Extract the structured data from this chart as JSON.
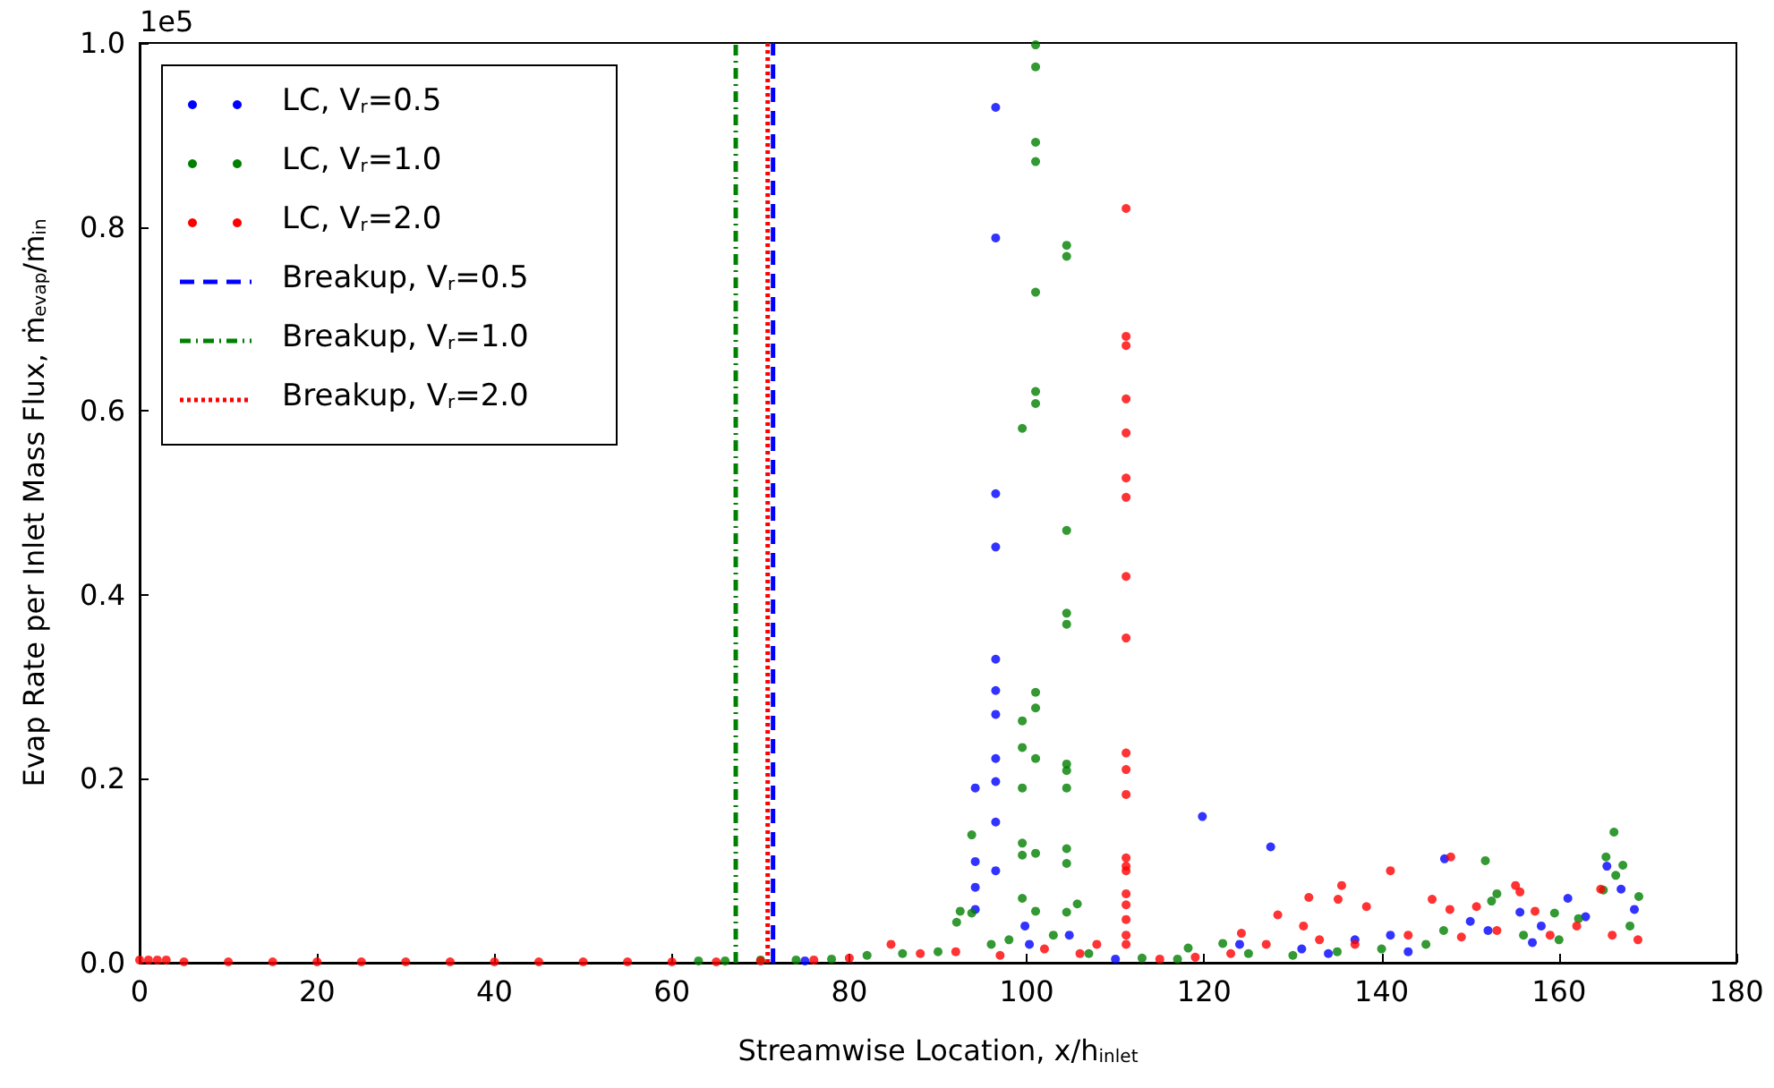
{
  "chart_data": {
    "type": "scatter",
    "xlabel": "Streamwise Location, x/h$_{inlet}$",
    "ylabel": "Evap Rate per Inlet Mass Flux, ṁ$_{evap}$/ṁ$_{in}$",
    "annotations": [
      "1e5"
    ],
    "xlim": [
      0,
      180
    ],
    "xticks": [
      0,
      20,
      40,
      60,
      80,
      100,
      120,
      140,
      160,
      180
    ],
    "ylim": [
      0,
      1
    ],
    "yticks": [
      {
        "value": 0,
        "label": "0.0"
      },
      0.2,
      0.4,
      0.6,
      0.8,
      {
        "value": 1,
        "label": "1.0"
      }
    ],
    "grid": false,
    "legend": "top left",
    "marker": "circle",
    "series": [
      {
        "name": "LC, V$_{r}$=0.5",
        "color": "#0000ff",
        "x": [
          96.5,
          96.5,
          96.5,
          96.5,
          96.5,
          96.5,
          96.5,
          96.5,
          96.5,
          96.5,
          96.5,
          94.2,
          94.2,
          94.2,
          94.2,
          99.8,
          100.3,
          104.8,
          119.8,
          127.5,
          147.1,
          165.4,
          167,
          161,
          150,
          155.6,
          168.5,
          124,
          131,
          137,
          141,
          152,
          158,
          163,
          75,
          110,
          134,
          143,
          157
        ],
        "values": [
          0.93,
          0.788,
          0.51,
          0.452,
          0.33,
          0.296,
          0.27,
          0.222,
          0.197,
          0.153,
          0.1,
          0.19,
          0.11,
          0.082,
          0.058,
          0.04,
          0.02,
          0.03,
          0.159,
          0.126,
          0.113,
          0.105,
          0.08,
          0.07,
          0.045,
          0.055,
          0.058,
          0.02,
          0.015,
          0.025,
          0.03,
          0.035,
          0.04,
          0.05,
          0.002,
          0.004,
          0.01,
          0.012,
          0.022
        ]
      },
      {
        "name": "LC, V$_{r}$=1.0",
        "color": "#008000",
        "x": [
          101,
          101,
          101,
          101,
          101,
          101,
          101,
          101,
          101,
          101,
          101,
          101,
          99.5,
          99.5,
          99.5,
          99.5,
          99.5,
          99.5,
          99.5,
          104.5,
          104.5,
          104.5,
          104.5,
          104.5,
          104.5,
          104.5,
          104.5,
          104.5,
          104.5,
          104.5,
          105.7,
          93.8,
          93.8,
          92.1,
          92.5,
          166.2,
          151.7,
          165.3,
          167.2,
          166.4,
          153,
          169,
          165,
          152.4,
          159.5,
          122.1,
          118.2,
          147,
          162.2,
          63,
          66,
          70,
          74,
          78,
          82,
          86,
          90,
          96,
          98,
          103,
          107,
          113,
          117,
          125,
          130,
          135,
          140,
          145,
          156,
          160,
          168
        ],
        "values": [
          0.998,
          0.974,
          0.892,
          0.871,
          0.729,
          0.621,
          0.608,
          0.294,
          0.277,
          0.222,
          0.119,
          0.056,
          0.581,
          0.263,
          0.234,
          0.19,
          0.13,
          0.117,
          0.07,
          0.78,
          0.768,
          0.47,
          0.38,
          0.368,
          0.216,
          0.209,
          0.19,
          0.124,
          0.108,
          0.055,
          0.064,
          0.139,
          0.054,
          0.044,
          0.056,
          0.142,
          0.111,
          0.115,
          0.106,
          0.095,
          0.075,
          0.072,
          0.079,
          0.067,
          0.054,
          0.021,
          0.016,
          0.035,
          0.048,
          0.002,
          0.002,
          0.003,
          0.003,
          0.004,
          0.008,
          0.01,
          0.012,
          0.02,
          0.025,
          0.03,
          0.01,
          0.005,
          0.004,
          0.01,
          0.008,
          0.012,
          0.015,
          0.02,
          0.03,
          0.025,
          0.04
        ]
      },
      {
        "name": "LC, V$_{r}$=2.0",
        "color": "#ff0000",
        "x": [
          111.2,
          111.2,
          111.2,
          111.2,
          111.2,
          111.2,
          111.2,
          111.2,
          111.2,
          111.2,
          111.2,
          111.2,
          111.2,
          111.2,
          111.2,
          111.2,
          111.2,
          111.2,
          111.2,
          111.2,
          107.9,
          84.7,
          141,
          135.5,
          131.8,
          135.1,
          147.8,
          155.1,
          155.6,
          145.7,
          147.7,
          138.3,
          128.3,
          131.2,
          124.2,
          164.7,
          157.3,
          150.7,
          168.9,
          0,
          1,
          2,
          3,
          5,
          10,
          15,
          20,
          25,
          30,
          35,
          40,
          45,
          50,
          55,
          60,
          65,
          70,
          76,
          80,
          88,
          92,
          97,
          102,
          106,
          115,
          119,
          123,
          127,
          133,
          137,
          143,
          149,
          153,
          159,
          162,
          166
        ],
        "values": [
          0.82,
          0.681,
          0.671,
          0.613,
          0.576,
          0.527,
          0.506,
          0.42,
          0.353,
          0.228,
          0.21,
          0.183,
          0.114,
          0.105,
          0.1,
          0.075,
          0.063,
          0.047,
          0.03,
          0.02,
          0.02,
          0.02,
          0.1,
          0.084,
          0.071,
          0.069,
          0.115,
          0.084,
          0.077,
          0.069,
          0.058,
          0.061,
          0.052,
          0.04,
          0.032,
          0.08,
          0.056,
          0.061,
          0.025,
          0.003,
          0.003,
          0.003,
          0.003,
          0.001,
          0.001,
          0.001,
          0.001,
          0.001,
          0.001,
          0.001,
          0.001,
          0.001,
          0.001,
          0.001,
          0.001,
          0.001,
          0.002,
          0.003,
          0.005,
          0.01,
          0.012,
          0.008,
          0.015,
          0.01,
          0.004,
          0.006,
          0.01,
          0.02,
          0.025,
          0.02,
          0.03,
          0.028,
          0.035,
          0.03,
          0.04,
          0.03
        ]
      },
      {
        "type": "line",
        "name": "Breakup, V$_{r}$=0.5",
        "color": "#0000ff",
        "line_style": "dashed",
        "marker": "none",
        "x": [
          71.4,
          71.4
        ],
        "values": [
          0,
          1
        ]
      },
      {
        "type": "line",
        "name": "Breakup, V$_{r}$=1.0",
        "color": "#008000",
        "line_style": "dashdot",
        "marker": "none",
        "x": [
          67.2,
          67.2
        ],
        "values": [
          0,
          1
        ]
      },
      {
        "type": "line",
        "name": "Breakup, V$_{r}$=2.0",
        "color": "#ff0000",
        "line_style": "dotted",
        "marker": "none",
        "x": [
          70.8,
          70.8
        ],
        "values": [
          0,
          1
        ]
      }
    ]
  }
}
